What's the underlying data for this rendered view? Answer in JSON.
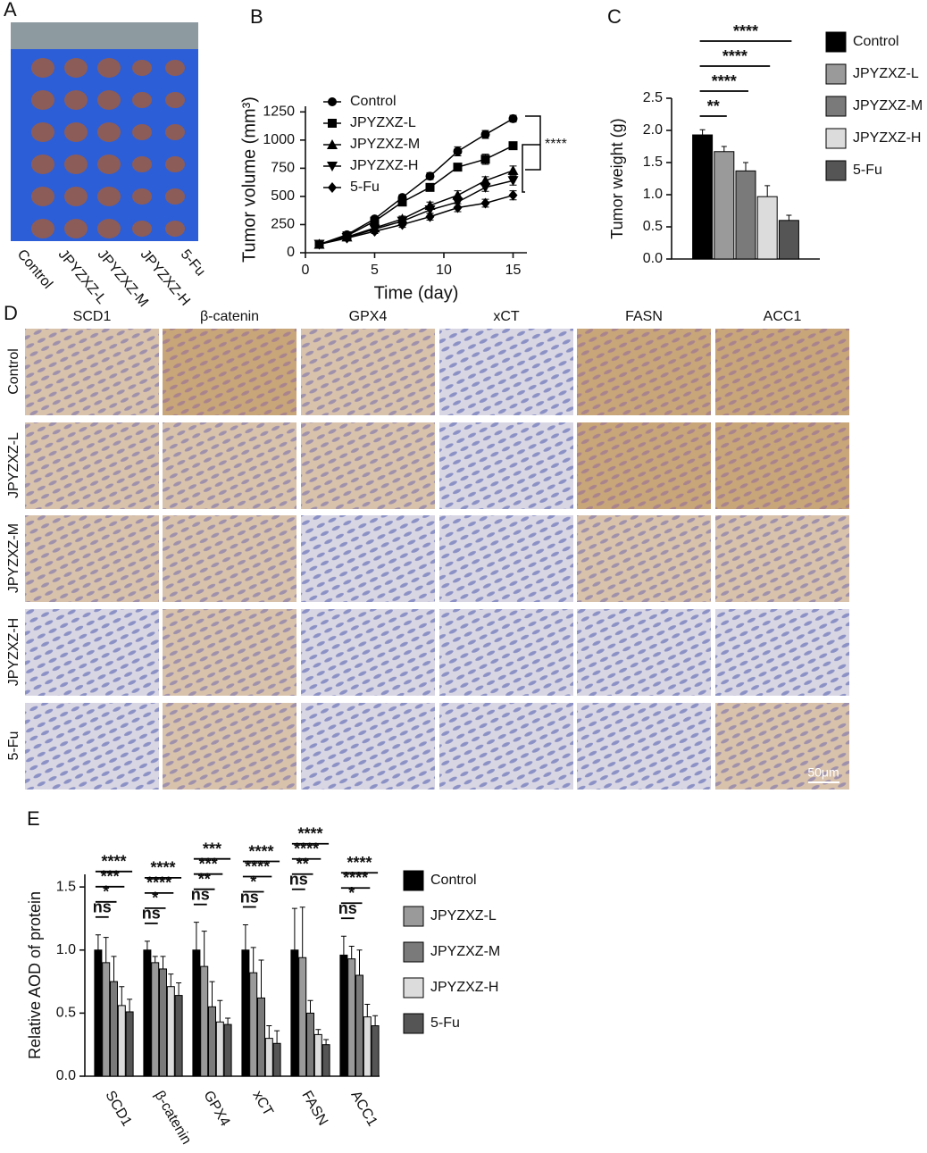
{
  "panel_a": {
    "label": "A",
    "groups": [
      "Control",
      "JPYZXZ-L",
      "JPYZXZ-M",
      "JPYZXZ-H",
      "5-Fu"
    ]
  },
  "panel_d": {
    "label": "D",
    "columns": [
      "SCD1",
      "β-catenin",
      "GPX4",
      "xCT",
      "FASN",
      "ACC1"
    ],
    "rows": [
      "Control",
      "JPYZXZ-L",
      "JPYZXZ-M",
      "JPYZXZ-H",
      "5-Fu"
    ],
    "scale_bar": "50μm"
  },
  "chart_data": [
    {
      "type": "line",
      "panel_label": "B",
      "x_label": "Time (day)",
      "y_label": "Tumor volume (mm³)",
      "x": [
        1,
        3,
        5,
        7,
        9,
        11,
        13,
        15
      ],
      "xlim": [
        0,
        16
      ],
      "xticks": [
        0,
        5,
        10,
        15
      ],
      "ylim": [
        0,
        1300
      ],
      "yticks": [
        0,
        250,
        500,
        750,
        1000,
        1250
      ],
      "significance": "****",
      "series": [
        {
          "name": "Control",
          "color": "#000000",
          "marker": "circle",
          "values": [
            75,
            160,
            300,
            490,
            680,
            900,
            1050,
            1190
          ],
          "errors": [
            10,
            15,
            20,
            25,
            30,
            40,
            35,
            30
          ]
        },
        {
          "name": "JPYZXZ-L",
          "color": "#000000",
          "marker": "square",
          "values": [
            75,
            150,
            280,
            450,
            580,
            760,
            830,
            950
          ],
          "errors": [
            10,
            15,
            20,
            25,
            30,
            30,
            45,
            30
          ]
        },
        {
          "name": "JPYZXZ-M",
          "color": "#000000",
          "marker": "triangle",
          "values": [
            75,
            140,
            220,
            300,
            420,
            510,
            640,
            730
          ],
          "errors": [
            10,
            15,
            20,
            25,
            30,
            40,
            35,
            40
          ]
        },
        {
          "name": "JPYZXZ-H",
          "color": "#000000",
          "marker": "triangle-down",
          "values": [
            75,
            135,
            210,
            280,
            380,
            450,
            580,
            640
          ],
          "errors": [
            10,
            15,
            20,
            25,
            30,
            40,
            35,
            40
          ]
        },
        {
          "name": "5-Fu",
          "color": "#000000",
          "marker": "diamond",
          "values": [
            75,
            130,
            190,
            250,
            320,
            400,
            440,
            510
          ],
          "errors": [
            10,
            15,
            20,
            25,
            30,
            35,
            35,
            40
          ]
        }
      ]
    },
    {
      "type": "bar",
      "panel_label": "C",
      "y_label": "Tumor weight (g)",
      "categories": [
        null
      ],
      "ylim": [
        0,
        2.5
      ],
      "yticks": [
        {
          "value": 0,
          "label": "0.0"
        },
        0.5,
        {
          "value": 1,
          "label": "1.0"
        },
        1.5,
        {
          "value": 2,
          "label": "2.0"
        },
        2.5
      ],
      "significance": [
        "**",
        "****",
        "****",
        "****"
      ],
      "series": [
        {
          "name": "Control",
          "color": "#000000",
          "values": [
            1.93
          ],
          "errors": [
            0.08
          ]
        },
        {
          "name": "JPYZXZ-L",
          "color": "#9a9a9a",
          "values": [
            1.67
          ],
          "errors": [
            0.08
          ]
        },
        {
          "name": "JPYZXZ-M",
          "color": "#7a7a7a",
          "values": [
            1.37
          ],
          "errors": [
            0.13
          ]
        },
        {
          "name": "JPYZXZ-H",
          "color": "#dcdcdc",
          "values": [
            0.97
          ],
          "errors": [
            0.17
          ]
        },
        {
          "name": "5-Fu",
          "color": "#555555",
          "values": [
            0.6
          ],
          "errors": [
            0.08
          ]
        }
      ]
    },
    {
      "type": "bar",
      "panel_label": "E",
      "y_label": "Relative AOD of protein",
      "categories": [
        "SCD1",
        "β-catenin",
        "GPX4",
        "xCT",
        "FASN",
        "ACC1"
      ],
      "ylim": [
        0,
        1.6
      ],
      "yticks": [
        {
          "value": 0,
          "label": "0.0"
        },
        0.5,
        {
          "value": 1,
          "label": "1.0"
        },
        1.5
      ],
      "significance": [
        [
          "ns",
          "*",
          "***",
          "****"
        ],
        [
          "ns",
          "*",
          "****",
          "****"
        ],
        [
          "ns",
          "**",
          "***",
          "***"
        ],
        [
          "ns",
          "*",
          "****",
          "****"
        ],
        [
          "ns",
          "**",
          "****",
          "****"
        ],
        [
          "ns",
          "*",
          "****",
          "****"
        ]
      ],
      "series": [
        {
          "name": "Control",
          "color": "#000000",
          "values": [
            1.0,
            1.0,
            1.0,
            1.0,
            1.0,
            0.96
          ],
          "errors": [
            0.12,
            0.07,
            0.22,
            0.2,
            0.33,
            0.15
          ]
        },
        {
          "name": "JPYZXZ-L",
          "color": "#9a9a9a",
          "values": [
            0.9,
            0.9,
            0.87,
            0.82,
            0.94,
            0.93
          ],
          "errors": [
            0.2,
            0.05,
            0.28,
            0.2,
            0.4,
            0.1
          ]
        },
        {
          "name": "JPYZXZ-M",
          "color": "#7a7a7a",
          "values": [
            0.75,
            0.85,
            0.55,
            0.62,
            0.5,
            0.8
          ],
          "errors": [
            0.2,
            0.1,
            0.2,
            0.3,
            0.1,
            0.2
          ]
        },
        {
          "name": "JPYZXZ-H",
          "color": "#dcdcdc",
          "values": [
            0.56,
            0.71,
            0.43,
            0.3,
            0.33,
            0.47
          ],
          "errors": [
            0.15,
            0.1,
            0.17,
            0.1,
            0.04,
            0.1
          ]
        },
        {
          "name": "5-Fu",
          "color": "#555555",
          "values": [
            0.51,
            0.64,
            0.41,
            0.26,
            0.25,
            0.4
          ],
          "errors": [
            0.1,
            0.1,
            0.05,
            0.1,
            0.04,
            0.08
          ]
        }
      ]
    }
  ]
}
